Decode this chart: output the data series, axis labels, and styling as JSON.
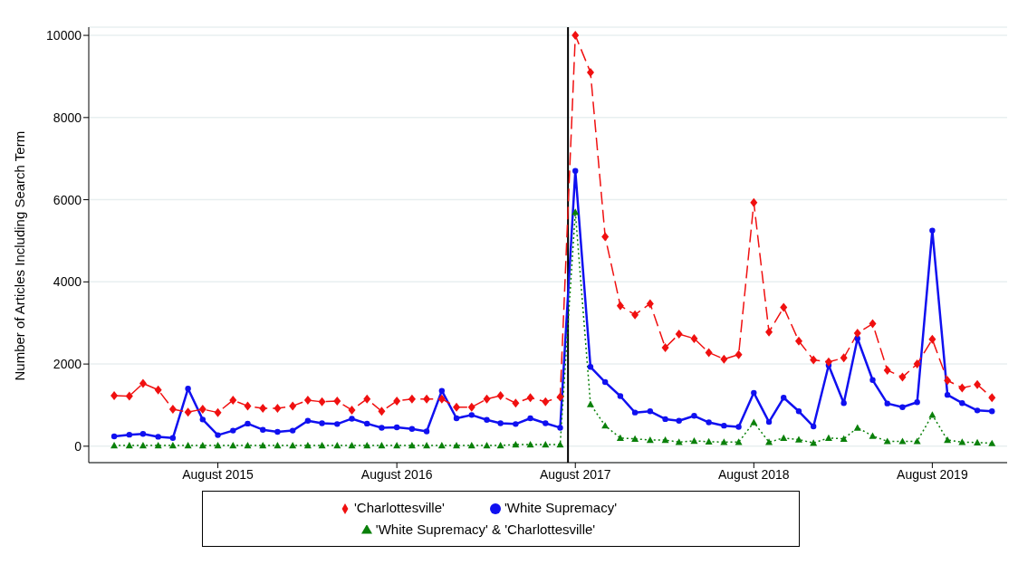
{
  "chart_data": {
    "type": "line",
    "ylabel": "Number of Articles Including Search Term",
    "x": [
      "2015-01",
      "2015-02",
      "2015-03",
      "2015-04",
      "2015-05",
      "2015-06",
      "2015-07",
      "2015-08",
      "2015-09",
      "2015-10",
      "2015-11",
      "2015-12",
      "2016-01",
      "2016-02",
      "2016-03",
      "2016-04",
      "2016-05",
      "2016-06",
      "2016-07",
      "2016-08",
      "2016-09",
      "2016-10",
      "2016-11",
      "2016-12",
      "2017-01",
      "2017-02",
      "2017-03",
      "2017-04",
      "2017-05",
      "2017-06",
      "2017-07",
      "2017-08",
      "2017-09",
      "2017-10",
      "2017-11",
      "2017-12",
      "2018-01",
      "2018-02",
      "2018-03",
      "2018-04",
      "2018-05",
      "2018-06",
      "2018-07",
      "2018-08",
      "2018-09",
      "2018-10",
      "2018-11",
      "2018-12",
      "2019-01",
      "2019-02",
      "2019-03",
      "2019-04",
      "2019-05",
      "2019-06",
      "2019-07",
      "2019-08",
      "2019-09",
      "2019-10",
      "2019-11",
      "2019-12"
    ],
    "series": [
      {
        "name": "'White Supremacy'",
        "color": "#1010f0",
        "marker": "circle",
        "line_style": "solid",
        "values": [
          240,
          280,
          300,
          230,
          200,
          1400,
          650,
          270,
          380,
          550,
          400,
          350,
          380,
          620,
          560,
          540,
          670,
          550,
          450,
          460,
          420,
          360,
          1350,
          680,
          760,
          640,
          560,
          540,
          680,
          560,
          450,
          6700,
          1930,
          1560,
          1220,
          820,
          850,
          660,
          620,
          740,
          580,
          500,
          470,
          1300,
          590,
          1180,
          850,
          480,
          1970,
          1050,
          2620,
          1610,
          1040,
          950,
          1070,
          5250,
          1250,
          1050,
          870,
          850
        ]
      },
      {
        "name": "'Charlottesville'",
        "color": "#f01010",
        "marker": "diamond",
        "line_style": "dashed",
        "values": [
          1230,
          1220,
          1530,
          1370,
          900,
          830,
          900,
          820,
          1120,
          980,
          920,
          920,
          980,
          1120,
          1080,
          1100,
          880,
          1150,
          850,
          1100,
          1150,
          1150,
          1150,
          950,
          950,
          1150,
          1230,
          1050,
          1180,
          1080,
          1200,
          10000,
          9100,
          5100,
          3420,
          3200,
          3470,
          2400,
          2730,
          2620,
          2280,
          2120,
          2230,
          5930,
          2780,
          3380,
          2560,
          2100,
          2050,
          2150,
          2750,
          2980,
          1850,
          1680,
          2000,
          2600,
          1600,
          1420,
          1500,
          1180
        ]
      },
      {
        "name": "'White Supremacy' & 'Charlottesville'",
        "color": "#0a800a",
        "marker": "triangle",
        "line_style": "dotted",
        "values": [
          20,
          20,
          20,
          20,
          20,
          20,
          20,
          20,
          20,
          20,
          20,
          20,
          20,
          20,
          20,
          20,
          20,
          20,
          20,
          20,
          20,
          20,
          20,
          20,
          20,
          20,
          20,
          40,
          40,
          40,
          40,
          5700,
          1020,
          500,
          200,
          180,
          150,
          150,
          100,
          130,
          110,
          100,
          100,
          580,
          100,
          200,
          160,
          80,
          200,
          180,
          450,
          250,
          120,
          120,
          120,
          760,
          150,
          100,
          90,
          70
        ]
      }
    ],
    "xlim": [
      "2014-11-10",
      "2020-01-01"
    ],
    "xticks": [
      {
        "value": "2015-08",
        "label": "August 2015"
      },
      {
        "value": "2016-08",
        "label": "August 2016"
      },
      {
        "value": "2017-08",
        "label": "August 2017"
      },
      {
        "value": "2018-08",
        "label": "August 2018"
      },
      {
        "value": "2019-08",
        "label": "August 2019"
      }
    ],
    "ylim": [
      -400,
      10200
    ],
    "yticks": [
      0,
      2000,
      4000,
      6000,
      8000,
      10000
    ],
    "ref_lines": [
      {
        "axis": "x",
        "value": "2017-07-17",
        "color": "#000000",
        "line_style": "solid"
      }
    ],
    "grid": "y",
    "legend": "bottom"
  }
}
